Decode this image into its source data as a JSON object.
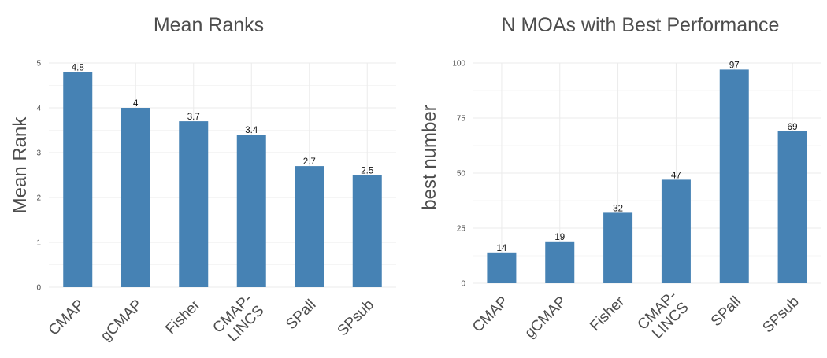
{
  "chart_data": [
    {
      "type": "bar",
      "title": "Mean Ranks",
      "xlabel": "",
      "ylabel": "Mean Rank",
      "categories": [
        [
          "CMAP"
        ],
        [
          "gCMAP"
        ],
        [
          "Fisher"
        ],
        [
          "CMAP-",
          "LINCS"
        ],
        [
          "SPall"
        ],
        [
          "SPsub"
        ]
      ],
      "values": [
        4.8,
        4,
        3.7,
        3.4,
        2.7,
        2.5
      ],
      "value_labels": [
        "4.8",
        "4",
        "3.7",
        "3.4",
        "2.7",
        "2.5"
      ],
      "ylim": [
        0,
        5
      ],
      "yticks": [
        0,
        1,
        2,
        3,
        4,
        5
      ],
      "ytick_labels": [
        "0",
        "1",
        "2",
        "3",
        "4",
        "5"
      ],
      "grid": true,
      "bar_color": "#4682B4"
    },
    {
      "type": "bar",
      "title": "N MOAs with Best Performance",
      "xlabel": "",
      "ylabel": "best number",
      "categories": [
        [
          "CMAP"
        ],
        [
          "gCMAP"
        ],
        [
          "Fisher"
        ],
        [
          "CMAP-",
          "LINCS"
        ],
        [
          "SPall"
        ],
        [
          "SPsub"
        ]
      ],
      "values": [
        14,
        19,
        32,
        47,
        97,
        69
      ],
      "value_labels": [
        "14",
        "19",
        "32",
        "47",
        "97",
        "69"
      ],
      "ylim": [
        0,
        100
      ],
      "yticks": [
        0,
        25,
        50,
        75,
        100
      ],
      "ytick_labels": [
        "0",
        "25",
        "50",
        "75",
        "100"
      ],
      "grid": true,
      "bar_color": "#4682B4"
    }
  ]
}
